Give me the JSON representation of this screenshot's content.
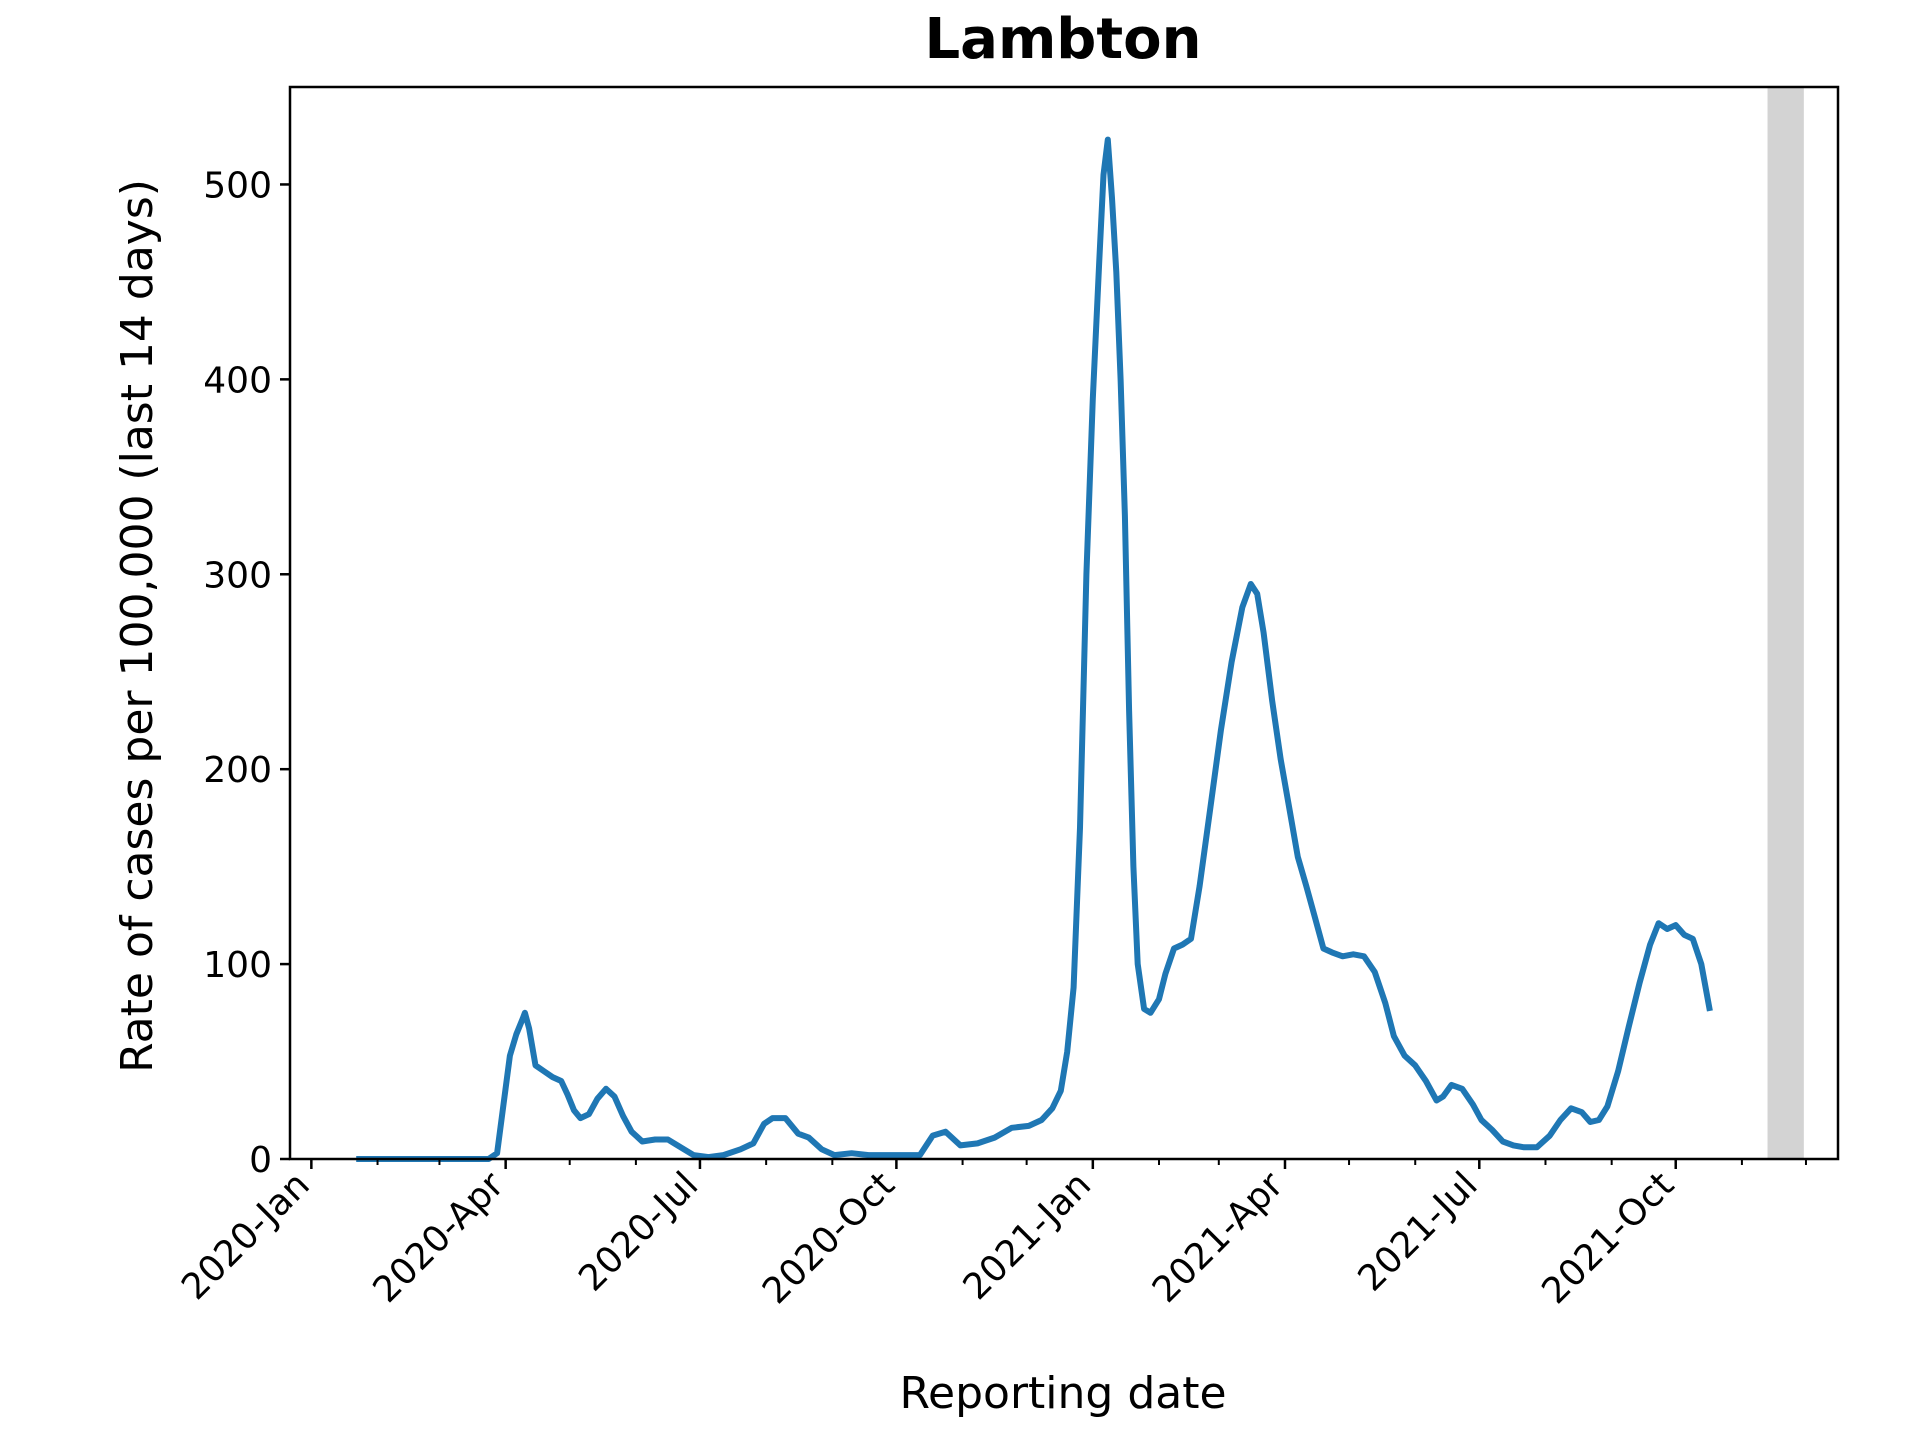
{
  "chart_data": {
    "type": "line",
    "title": "Lambton",
    "xlabel": "Reporting date",
    "ylabel": "Rate of cases per 100,000 (last 14 days)",
    "xlim": [
      "2019-12-22",
      "2021-12-16"
    ],
    "ylim": [
      0,
      550
    ],
    "yticks": [
      0,
      100,
      200,
      300,
      400,
      500
    ],
    "xticks": [
      {
        "date": "2020-01-01",
        "label": "2020-Jan"
      },
      {
        "date": "2020-04-01",
        "label": "2020-Apr"
      },
      {
        "date": "2020-07-01",
        "label": "2020-Jul"
      },
      {
        "date": "2020-10-01",
        "label": "2020-Oct"
      },
      {
        "date": "2021-01-01",
        "label": "2021-Jan"
      },
      {
        "date": "2021-04-01",
        "label": "2021-Apr"
      },
      {
        "date": "2021-07-01",
        "label": "2021-Jul"
      },
      {
        "date": "2021-10-01",
        "label": "2021-Oct"
      }
    ],
    "minor_xticks": [
      "2020-02-01",
      "2020-03-01",
      "2020-05-01",
      "2020-06-01",
      "2020-08-01",
      "2020-09-01",
      "2020-11-01",
      "2020-12-01",
      "2021-02-01",
      "2021-03-01",
      "2021-05-01",
      "2021-06-01",
      "2021-08-01",
      "2021-09-01",
      "2021-11-01",
      "2021-12-01"
    ],
    "shaded_range": [
      "2021-11-13",
      "2021-11-30"
    ],
    "grid": false,
    "colors": {
      "line": "#1f77b4",
      "shade": "#d3d3d3"
    },
    "series": [
      {
        "points": [
          [
            "2020-01-22",
            0
          ],
          [
            "2020-02-15",
            0
          ],
          [
            "2020-03-15",
            0
          ],
          [
            "2020-03-24",
            0
          ],
          [
            "2020-03-28",
            3
          ],
          [
            "2020-03-31",
            28
          ],
          [
            "2020-04-03",
            53
          ],
          [
            "2020-04-06",
            64
          ],
          [
            "2020-04-09",
            72
          ],
          [
            "2020-04-10",
            75
          ],
          [
            "2020-04-12",
            67
          ],
          [
            "2020-04-15",
            48
          ],
          [
            "2020-04-19",
            45
          ],
          [
            "2020-04-23",
            42
          ],
          [
            "2020-04-27",
            40
          ],
          [
            "2020-04-30",
            33
          ],
          [
            "2020-05-03",
            25
          ],
          [
            "2020-05-06",
            21
          ],
          [
            "2020-05-10",
            23
          ],
          [
            "2020-05-14",
            31
          ],
          [
            "2020-05-18",
            36
          ],
          [
            "2020-05-22",
            32
          ],
          [
            "2020-05-26",
            22
          ],
          [
            "2020-05-30",
            14
          ],
          [
            "2020-06-04",
            9
          ],
          [
            "2020-06-10",
            10
          ],
          [
            "2020-06-16",
            10
          ],
          [
            "2020-06-22",
            6
          ],
          [
            "2020-06-28",
            2
          ],
          [
            "2020-07-05",
            1
          ],
          [
            "2020-07-12",
            2
          ],
          [
            "2020-07-20",
            5
          ],
          [
            "2020-07-26",
            8
          ],
          [
            "2020-07-31",
            18
          ],
          [
            "2020-08-04",
            21
          ],
          [
            "2020-08-10",
            21
          ],
          [
            "2020-08-16",
            13
          ],
          [
            "2020-08-21",
            11
          ],
          [
            "2020-08-27",
            5
          ],
          [
            "2020-09-02",
            2
          ],
          [
            "2020-09-10",
            3
          ],
          [
            "2020-09-18",
            2
          ],
          [
            "2020-09-26",
            2
          ],
          [
            "2020-10-04",
            2
          ],
          [
            "2020-10-12",
            2
          ],
          [
            "2020-10-18",
            12
          ],
          [
            "2020-10-24",
            14
          ],
          [
            "2020-10-31",
            7
          ],
          [
            "2020-11-08",
            8
          ],
          [
            "2020-11-16",
            11
          ],
          [
            "2020-11-24",
            16
          ],
          [
            "2020-12-02",
            17
          ],
          [
            "2020-12-08",
            20
          ],
          [
            "2020-12-13",
            26
          ],
          [
            "2020-12-17",
            35
          ],
          [
            "2020-12-20",
            55
          ],
          [
            "2020-12-23",
            88
          ],
          [
            "2020-12-26",
            170
          ],
          [
            "2020-12-29",
            300
          ],
          [
            "2021-01-01",
            390
          ],
          [
            "2021-01-04",
            460
          ],
          [
            "2021-01-06",
            505
          ],
          [
            "2021-01-08",
            523
          ],
          [
            "2021-01-10",
            493
          ],
          [
            "2021-01-12",
            455
          ],
          [
            "2021-01-14",
            400
          ],
          [
            "2021-01-16",
            330
          ],
          [
            "2021-01-18",
            230
          ],
          [
            "2021-01-20",
            150
          ],
          [
            "2021-01-22",
            100
          ],
          [
            "2021-01-25",
            77
          ],
          [
            "2021-01-28",
            75
          ],
          [
            "2021-02-01",
            82
          ],
          [
            "2021-02-04",
            95
          ],
          [
            "2021-02-08",
            108
          ],
          [
            "2021-02-12",
            110
          ],
          [
            "2021-02-16",
            113
          ],
          [
            "2021-02-20",
            140
          ],
          [
            "2021-02-25",
            180
          ],
          [
            "2021-03-02",
            220
          ],
          [
            "2021-03-07",
            255
          ],
          [
            "2021-03-12",
            283
          ],
          [
            "2021-03-16",
            295
          ],
          [
            "2021-03-19",
            290
          ],
          [
            "2021-03-22",
            270
          ],
          [
            "2021-03-26",
            235
          ],
          [
            "2021-03-30",
            205
          ],
          [
            "2021-04-03",
            180
          ],
          [
            "2021-04-07",
            155
          ],
          [
            "2021-04-11",
            140
          ],
          [
            "2021-04-15",
            124
          ],
          [
            "2021-04-19",
            108
          ],
          [
            "2021-04-23",
            106
          ],
          [
            "2021-04-28",
            104
          ],
          [
            "2021-05-03",
            105
          ],
          [
            "2021-05-08",
            104
          ],
          [
            "2021-05-13",
            96
          ],
          [
            "2021-05-18",
            80
          ],
          [
            "2021-05-22",
            63
          ],
          [
            "2021-05-27",
            53
          ],
          [
            "2021-06-01",
            48
          ],
          [
            "2021-06-06",
            40
          ],
          [
            "2021-06-11",
            30
          ],
          [
            "2021-06-14",
            32
          ],
          [
            "2021-06-18",
            38
          ],
          [
            "2021-06-23",
            36
          ],
          [
            "2021-06-28",
            28
          ],
          [
            "2021-07-02",
            20
          ],
          [
            "2021-07-07",
            15
          ],
          [
            "2021-07-12",
            9
          ],
          [
            "2021-07-17",
            7
          ],
          [
            "2021-07-22",
            6
          ],
          [
            "2021-07-28",
            6
          ],
          [
            "2021-08-03",
            12
          ],
          [
            "2021-08-08",
            20
          ],
          [
            "2021-08-13",
            26
          ],
          [
            "2021-08-18",
            24
          ],
          [
            "2021-08-22",
            19
          ],
          [
            "2021-08-26",
            20
          ],
          [
            "2021-08-30",
            27
          ],
          [
            "2021-09-04",
            45
          ],
          [
            "2021-09-09",
            68
          ],
          [
            "2021-09-14",
            90
          ],
          [
            "2021-09-19",
            110
          ],
          [
            "2021-09-23",
            121
          ],
          [
            "2021-09-27",
            118
          ],
          [
            "2021-10-01",
            120
          ],
          [
            "2021-10-05",
            115
          ],
          [
            "2021-10-09",
            113
          ],
          [
            "2021-10-13",
            100
          ],
          [
            "2021-10-17",
            76
          ]
        ]
      }
    ]
  }
}
